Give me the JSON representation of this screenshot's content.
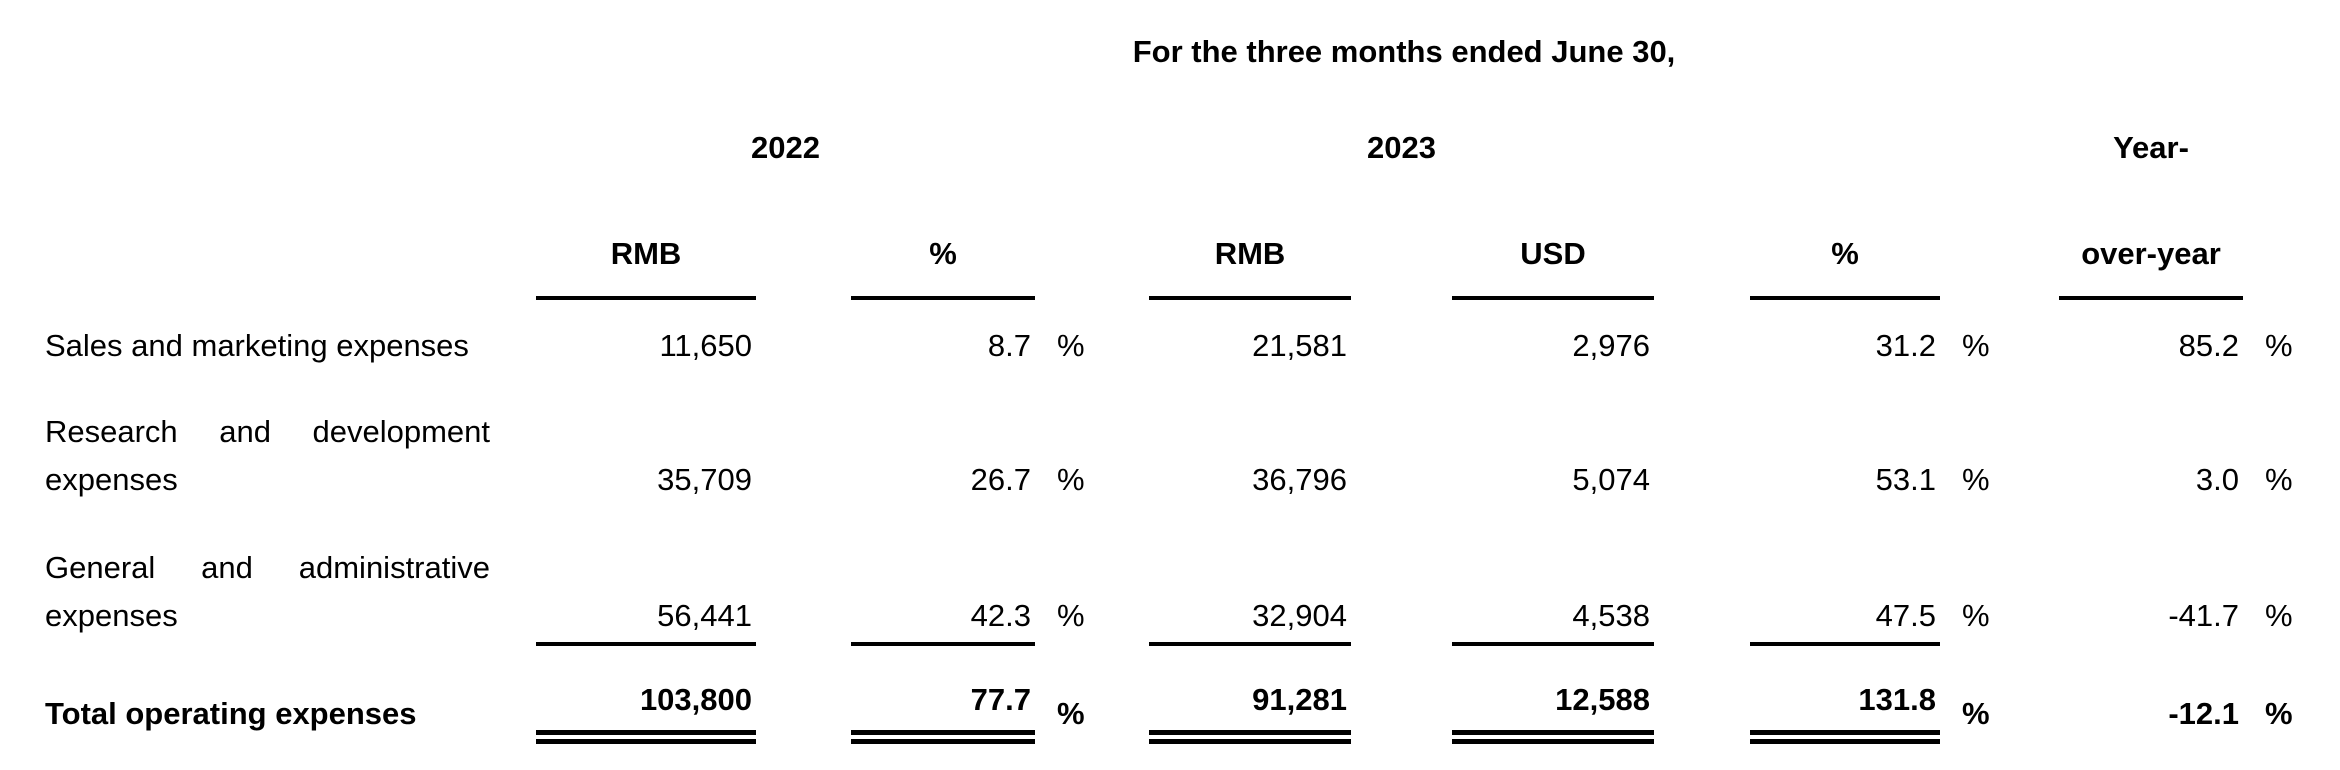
{
  "colors": {
    "text": "#000000",
    "background": "#ffffff",
    "rule": "#000000"
  },
  "table": {
    "period_header": "For the three months ended June 30,",
    "year_headers": {
      "y2022": "2022",
      "y2023": "2023",
      "yoy_line1": "Year-"
    },
    "column_headers": {
      "rmb_2022": "RMB",
      "pct_2022": "%",
      "rmb_2023": "RMB",
      "usd_2023": "USD",
      "pct_2023": "%",
      "yoy_line2": "over-year"
    },
    "percent_sign": "%",
    "rows": [
      {
        "label_lines": [
          "Sales and marketing expenses"
        ],
        "rmb_2022": "11,650",
        "pct_2022": "8.7",
        "rmb_2023": "21,581",
        "usd_2023": "2,976",
        "pct_2023": "31.2",
        "yoy": "85.2"
      },
      {
        "label_lines": [
          "Research and development",
          "expenses"
        ],
        "rmb_2022": "35,709",
        "pct_2022": "26.7",
        "rmb_2023": "36,796",
        "usd_2023": "5,074",
        "pct_2023": "53.1",
        "yoy": "3.0"
      },
      {
        "label_lines": [
          "General and administrative",
          "expenses"
        ],
        "rmb_2022": "56,441",
        "pct_2022": "42.3",
        "rmb_2023": "32,904",
        "usd_2023": "4,538",
        "pct_2023": "47.5",
        "yoy": "-41.7"
      }
    ],
    "total_row": {
      "label": "Total operating expenses",
      "rmb_2022": "103,800",
      "pct_2022": "77.7",
      "rmb_2023": "91,281",
      "usd_2023": "12,588",
      "pct_2023": "131.8",
      "yoy": "-12.1"
    }
  }
}
